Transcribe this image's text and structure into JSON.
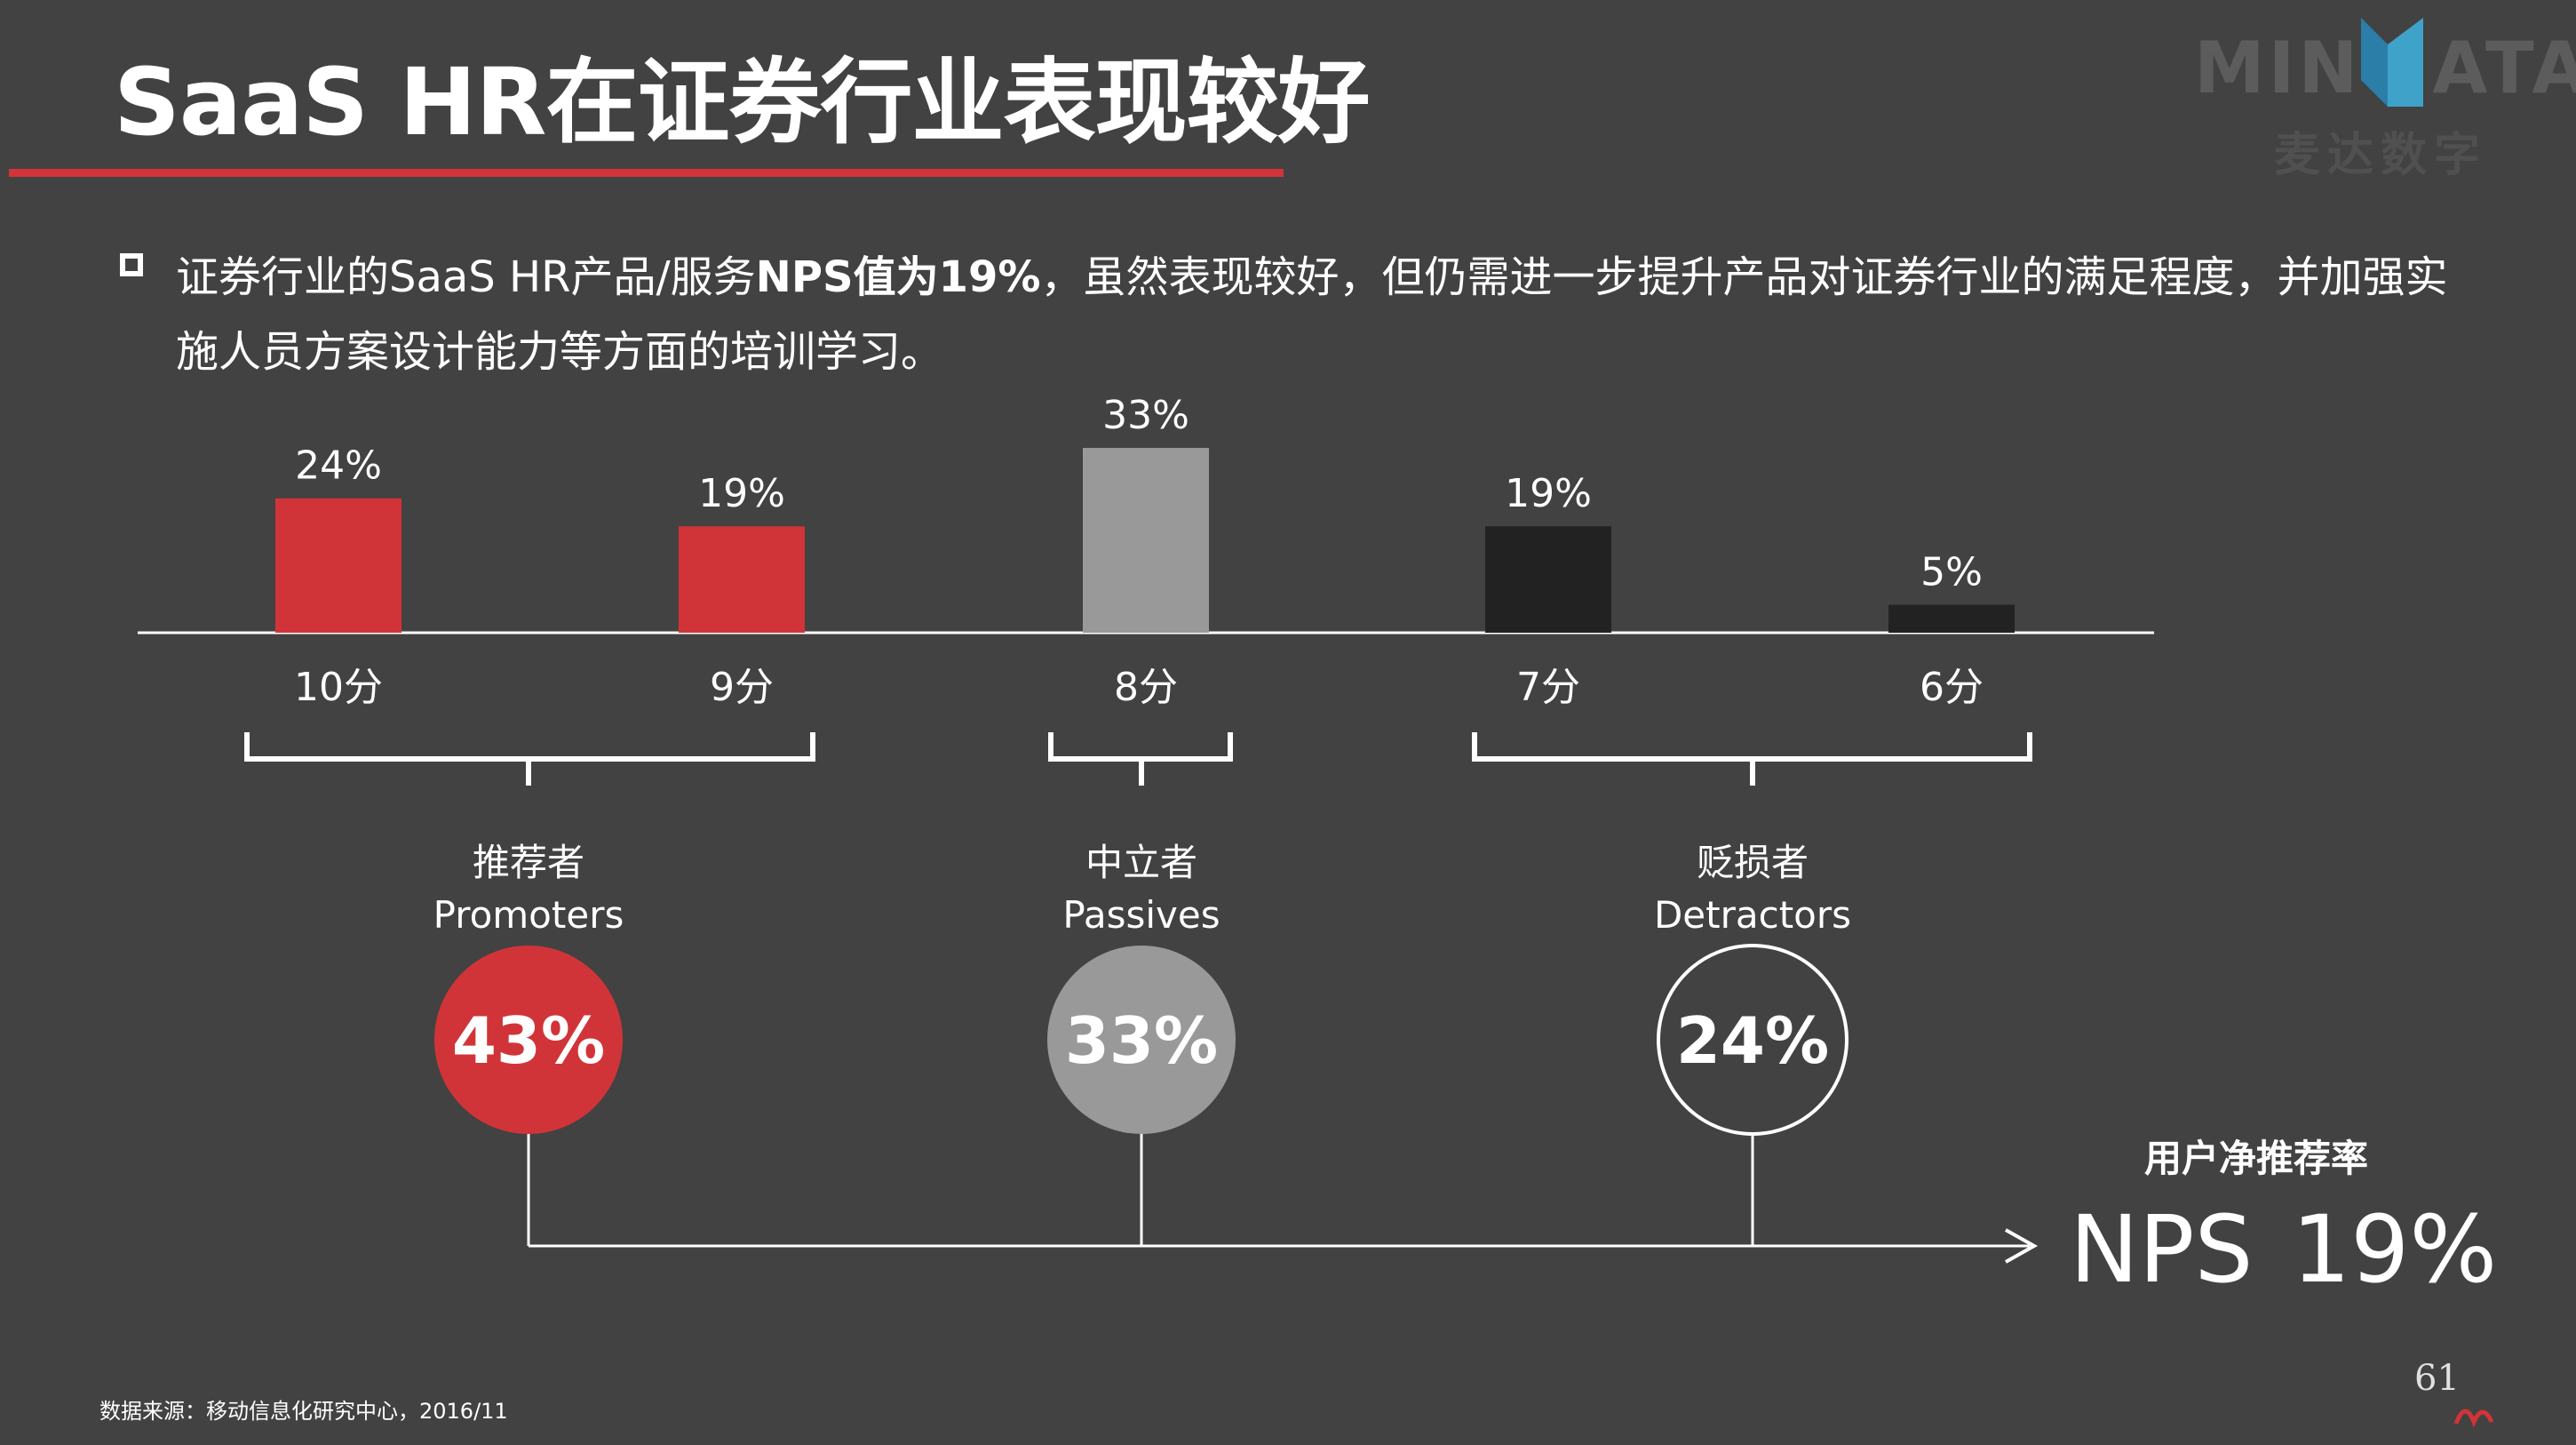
{
  "slide": {
    "title": "SaaS HR在证券行业表现较好",
    "bullet_part1": "证券行业的SaaS HR产品/服务",
    "bullet_bold": "NPS值为19%",
    "bullet_part2": "，虽然表现较好，但仍需进一步提升产品对证券行业的满足程度，并加强实",
    "bullet_line2": "施人员方案设计能力等方面的培训学习。",
    "source": "数据来源：移动信息化研究中心，2016/11",
    "page_number": "61"
  },
  "logo": {
    "text_left": "MIN",
    "text_right": "ATA",
    "text_cn": "麦达数字"
  },
  "colors": {
    "background": "#424242",
    "promoter": "#d13438",
    "passive": "#999999",
    "detractor": "#222222",
    "text": "#ffffff"
  },
  "chart_data": {
    "type": "bar",
    "categories": [
      "10分",
      "9分",
      "8分",
      "7分",
      "6分"
    ],
    "values": [
      24,
      19,
      33,
      19,
      5
    ],
    "value_labels": [
      "24%",
      "19%",
      "33%",
      "19%",
      "5%"
    ],
    "bar_colors": [
      "#d13438",
      "#d13438",
      "#999999",
      "#222222",
      "#222222"
    ],
    "ylim": [
      0,
      33
    ],
    "groups": [
      {
        "name_cn": "推荐者",
        "name_en": "Promoters",
        "value_label": "43%",
        "fill": "#d13438",
        "stroke": "none",
        "covers": [
          "10分",
          "9分"
        ]
      },
      {
        "name_cn": "中立者",
        "name_en": "Passives",
        "value_label": "33%",
        "fill": "#999999",
        "stroke": "none",
        "covers": [
          "8分"
        ]
      },
      {
        "name_cn": "贬损者",
        "name_en": "Detractors",
        "value_label": "24%",
        "fill": "none",
        "stroke": "#ffffff",
        "covers": [
          "7分",
          "6分"
        ]
      }
    ],
    "nps_label_cn": "用户净推荐率",
    "nps_prefix": "NPS",
    "nps_value_label": "19%"
  }
}
